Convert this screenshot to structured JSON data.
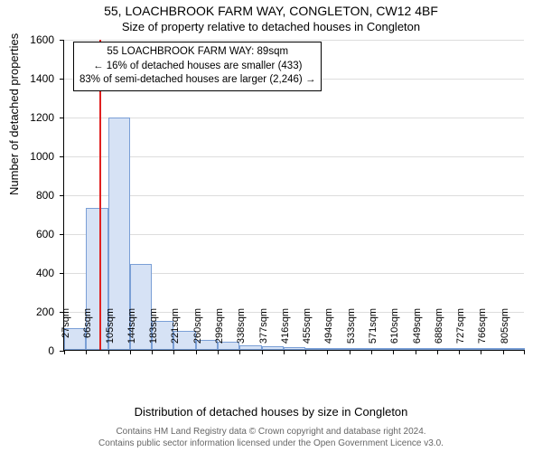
{
  "title": "55, LOACHBROOK FARM WAY, CONGLETON, CW12 4BF",
  "subtitle": "Size of property relative to detached houses in Congleton",
  "ylabel": "Number of detached properties",
  "xlabel": "Distribution of detached houses by size in Congleton",
  "footer_line1": "Contains HM Land Registry data © Crown copyright and database right 2024.",
  "footer_line2": "Contains public sector information licensed under the Open Government Licence v3.0.",
  "annot": {
    "line1": "55 LOACHBROOK FARM WAY: 89sqm",
    "line2": "← 16% of detached houses are smaller (433)",
    "line3": "83% of semi-detached houses are larger (2,246) →"
  },
  "chart": {
    "type": "histogram",
    "ylim": [
      0,
      1600
    ],
    "ytick_step": 200,
    "yticks": [
      0,
      200,
      400,
      600,
      800,
      1000,
      1200,
      1400,
      1600
    ],
    "bar_fill": "#d6e2f5",
    "bar_stroke": "#7a9fd6",
    "grid_color": "#dddddd",
    "refline_color": "#e02020",
    "refline_x": 89,
    "background_color": "#ffffff",
    "x_start": 27,
    "x_bin_width": 39,
    "n_bins": 21,
    "values": [
      110,
      730,
      1195,
      440,
      150,
      100,
      50,
      40,
      25,
      20,
      15,
      10,
      8,
      6,
      5,
      4,
      3,
      2,
      2,
      1,
      1
    ],
    "xtick_labels": [
      "27sqm",
      "66sqm",
      "105sqm",
      "144sqm",
      "183sqm",
      "221sqm",
      "260sqm",
      "299sqm",
      "338sqm",
      "377sqm",
      "416sqm",
      "455sqm",
      "494sqm",
      "533sqm",
      "571sqm",
      "610sqm",
      "649sqm",
      "688sqm",
      "727sqm",
      "766sqm",
      "805sqm"
    ],
    "title_fontsize": 14,
    "subtitle_fontsize": 13,
    "label_fontsize": 13,
    "tick_fontsize": 12,
    "annot_fontsize": 11.5,
    "footer_fontsize": 10,
    "footer_color": "#666666"
  }
}
